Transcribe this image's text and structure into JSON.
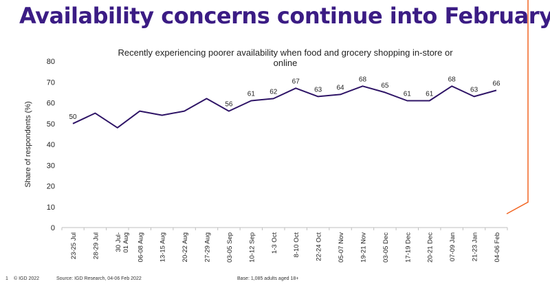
{
  "headline": "Availability concerns continue into February",
  "colors": {
    "headline": "#3b1c84",
    "line": "#2e1466",
    "accent": "#f26522",
    "text": "#222222"
  },
  "footer": {
    "page_number": "1",
    "copyright": "© IGD 2022",
    "source": "Source: IGD Research, 04-06 Feb 2022",
    "base": "Base: 1,085 adults aged 18+"
  },
  "chart_data": {
    "type": "line",
    "title": "Recently experiencing poorer availability when food and grocery shopping in-store or online",
    "title_lines": [
      "Recently experiencing poorer availability when food and grocery shopping in-store or",
      "online"
    ],
    "xlabel": "",
    "ylabel": "Share of respondents (%)",
    "ylim": [
      0,
      80
    ],
    "yticks": [
      0,
      10,
      20,
      30,
      40,
      50,
      60,
      70,
      80
    ],
    "grid": false,
    "categories": [
      "23-25 Jul",
      "28-29 Jul",
      "30 Jul-01 Aug",
      "06-08 Aug",
      "13-15 Aug",
      "20-22 Aug",
      "27-29 Aug",
      "03-05 Sep",
      "10-12 Sep",
      "1-3 Oct",
      "8-10 Oct",
      "22-24 Oct",
      "05-07 Nov",
      "19-21 Nov",
      "03-05 Dec",
      "17-19 Dec",
      "20-21 Dec",
      "07-09 Jan",
      "21-23 Jan",
      "04-06 Feb"
    ],
    "values": [
      50,
      55,
      48,
      56,
      54,
      56,
      62,
      56,
      61,
      62,
      67,
      63,
      64,
      68,
      65,
      61,
      61,
      68,
      63,
      66
    ],
    "data_labels": [
      "50",
      null,
      null,
      null,
      null,
      null,
      null,
      "56",
      "61",
      "62",
      "67",
      "63",
      "64",
      "68",
      "65",
      "61",
      "61",
      "68",
      "63",
      "66"
    ]
  }
}
